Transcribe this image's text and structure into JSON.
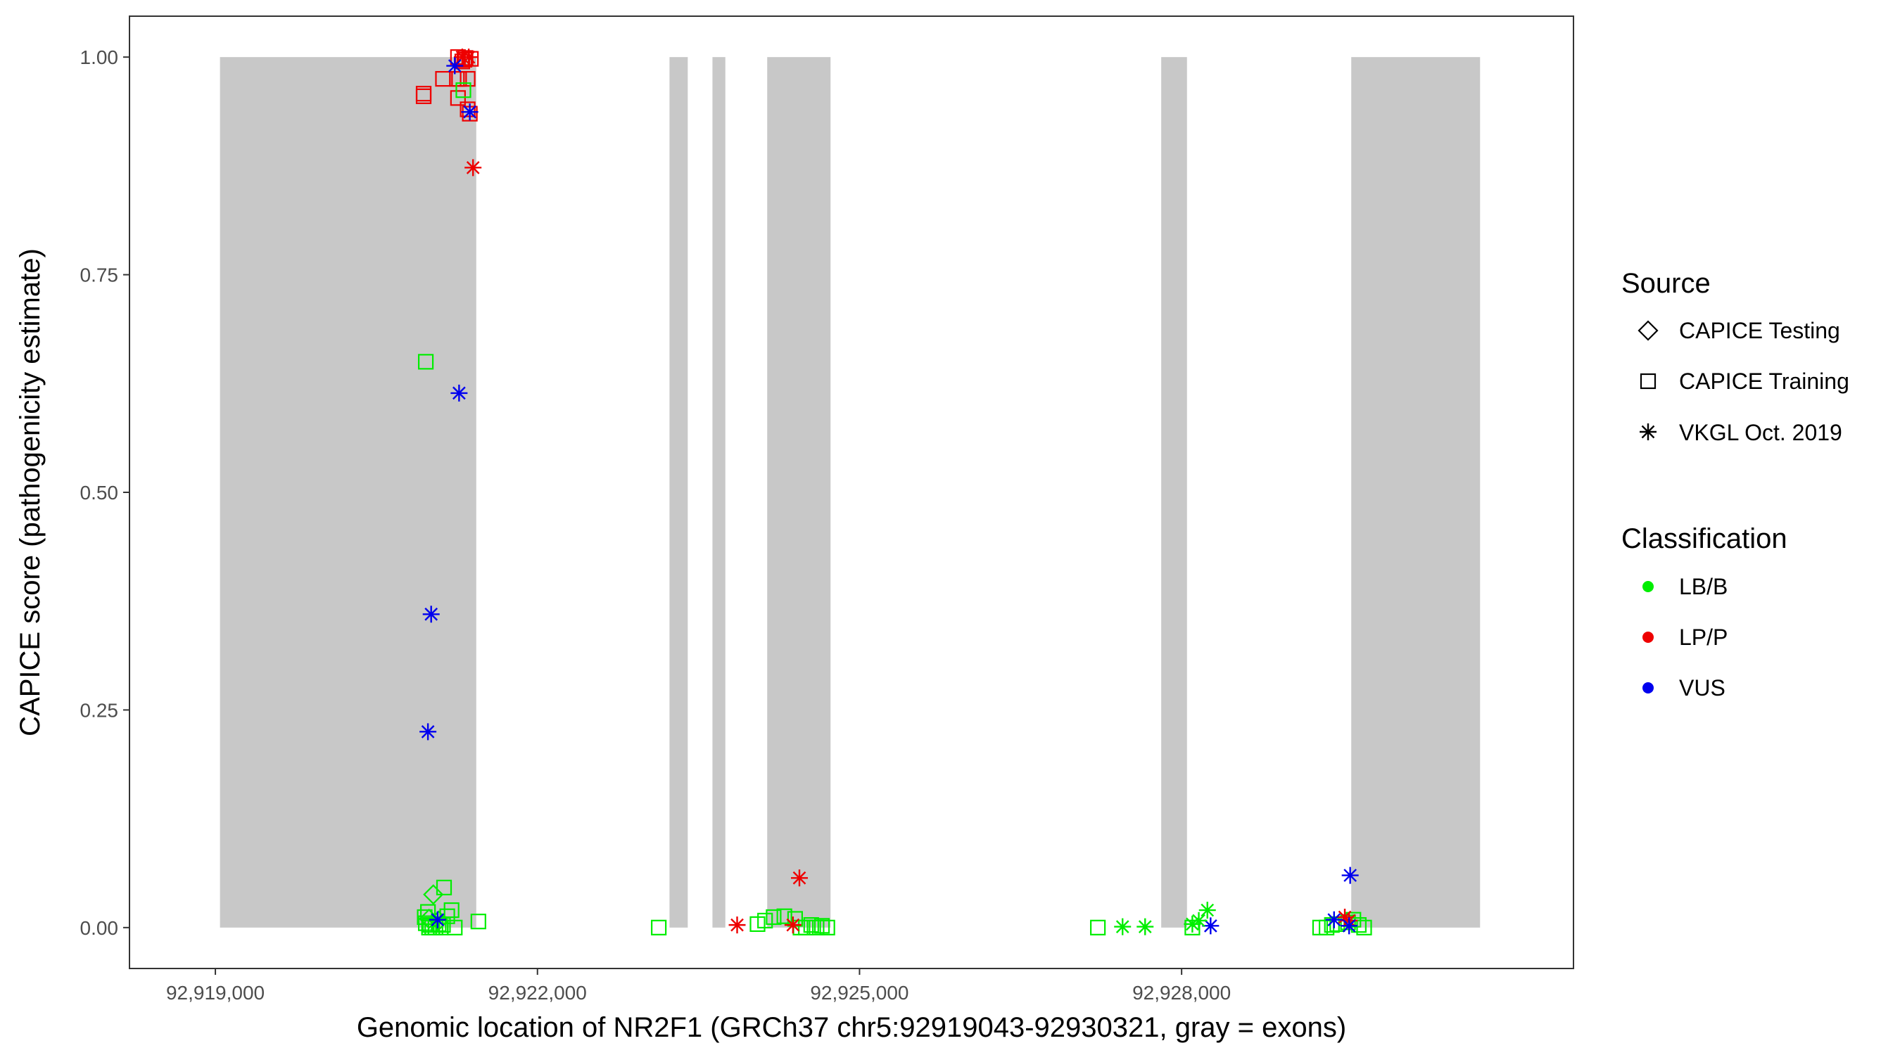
{
  "chart_data": {
    "type": "scatter",
    "xlabel": "Genomic location of NR2F1 (GRCh37 chr5:92919043-92930321, gray = exons)",
    "ylabel": "CAPICE score (pathogenicity estimate)",
    "xlim": [
      92918200,
      92931650
    ],
    "ylim": [
      -0.047,
      1.047
    ],
    "x_ticks": [
      92919000,
      92922000,
      92925000,
      92928000
    ],
    "x_tick_labels": [
      "92,919,000",
      "92,922,000",
      "92,925,000",
      "92,928,000"
    ],
    "y_ticks": [
      0,
      0.25,
      0.5,
      0.75,
      1.0
    ],
    "y_tick_labels": [
      "0.00",
      "0.25",
      "0.50",
      "0.75",
      "1.00"
    ],
    "grid": false,
    "exons": [
      {
        "start": 92919043,
        "end": 92921430
      },
      {
        "start": 92923230,
        "end": 92923400
      },
      {
        "start": 92923630,
        "end": 92923750
      },
      {
        "start": 92924140,
        "end": 92924730
      },
      {
        "start": 92927810,
        "end": 92928050
      },
      {
        "start": 92929580,
        "end": 92930780
      }
    ],
    "legend": {
      "placement": "right",
      "source": {
        "title": "Source",
        "items": [
          {
            "label": "CAPICE Testing",
            "shape": "diamond"
          },
          {
            "label": "CAPICE Training",
            "shape": "square"
          },
          {
            "label": "VKGL Oct. 2019",
            "shape": "asterisk"
          }
        ]
      },
      "classification": {
        "title": "Classification",
        "items": [
          {
            "label": "LB/B",
            "color": "#00ee00"
          },
          {
            "label": "LP/P",
            "color": "#ee0000"
          },
          {
            "label": "VUS",
            "color": "#0000ee"
          }
        ]
      }
    },
    "series": [
      {
        "source": "CAPICE Training",
        "classification": "LP/P",
        "points": [
          [
            92920940,
            0.955
          ],
          [
            92920940,
            0.958
          ],
          [
            92921120,
            0.975
          ],
          [
            92921250,
            0.975
          ],
          [
            92921270,
            0.975
          ],
          [
            92921350,
            0.975
          ],
          [
            92921260,
            0.953
          ],
          [
            92921370,
            0.935
          ],
          [
            92921350,
            0.94
          ],
          [
            92921300,
            0.995
          ],
          [
            92921330,
            0.999
          ],
          [
            92921380,
            0.998
          ],
          [
            92921260,
            1.0
          ],
          [
            92921320,
            0.997
          ]
        ]
      },
      {
        "source": "CAPICE Training",
        "classification": "LB/B",
        "points": [
          [
            92920960,
            0.65
          ],
          [
            92921310,
            0.962
          ],
          [
            92920950,
            0.012
          ],
          [
            92920960,
            0.005
          ],
          [
            92920980,
            0.018
          ],
          [
            92920990,
            0.0
          ],
          [
            92921000,
            0.003
          ],
          [
            92921020,
            0.0
          ],
          [
            92921050,
            0.0
          ],
          [
            92921080,
            0.004
          ],
          [
            92921100,
            0.0
          ],
          [
            92921120,
            0.003
          ],
          [
            92921130,
            0.046
          ],
          [
            92921160,
            0.013
          ],
          [
            92921200,
            0.02
          ],
          [
            92921230,
            0.0
          ],
          [
            92921450,
            0.007
          ],
          [
            92923130,
            0.0
          ],
          [
            92924050,
            0.004
          ],
          [
            92924120,
            0.008
          ],
          [
            92924200,
            0.012
          ],
          [
            92924300,
            0.013
          ],
          [
            92924400,
            0.01
          ],
          [
            92924450,
            0.0
          ],
          [
            92924500,
            0.0
          ],
          [
            92924550,
            0.003
          ],
          [
            92924600,
            0.0
          ],
          [
            92924650,
            0.002
          ],
          [
            92924700,
            0.0
          ],
          [
            92927220,
            0.0
          ],
          [
            92928100,
            0.0
          ],
          [
            92929290,
            0.0
          ],
          [
            92929350,
            0.0
          ],
          [
            92929400,
            0.003
          ],
          [
            92929450,
            0.004
          ],
          [
            92929550,
            0.006
          ],
          [
            92929600,
            0.009
          ],
          [
            92929650,
            0.003
          ],
          [
            92929700,
            0.0
          ]
        ]
      },
      {
        "source": "CAPICE Testing",
        "classification": "LB/B",
        "points": [
          [
            92921030,
            0.038
          ],
          [
            92921080,
            0.008
          ],
          [
            92920990,
            0.01
          ]
        ]
      },
      {
        "source": "VKGL Oct. 2019",
        "classification": "LP/P",
        "points": [
          [
            92921400,
            0.873
          ],
          [
            92924440,
            0.057
          ],
          [
            92923860,
            0.003
          ],
          [
            92924380,
            0.003
          ],
          [
            92929520,
            0.012
          ],
          [
            92929560,
            0.008
          ],
          [
            92921300,
            1.0
          ],
          [
            92921360,
            1.0
          ]
        ]
      },
      {
        "source": "VKGL Oct. 2019",
        "classification": "VUS",
        "points": [
          [
            92921370,
            0.937
          ],
          [
            92921230,
            0.99
          ],
          [
            92921270,
            0.614
          ],
          [
            92921010,
            0.36
          ],
          [
            92920980,
            0.225
          ],
          [
            92921070,
            0.009
          ],
          [
            92929570,
            0.06
          ],
          [
            92929420,
            0.009
          ],
          [
            92929560,
            0.002
          ],
          [
            92928270,
            0.002
          ]
        ]
      },
      {
        "source": "VKGL Oct. 2019",
        "classification": "LB/B",
        "points": [
          [
            92927450,
            0.001
          ],
          [
            92927660,
            0.001
          ],
          [
            92928100,
            0.004
          ],
          [
            92928160,
            0.008
          ],
          [
            92928240,
            0.02
          ]
        ]
      }
    ]
  }
}
